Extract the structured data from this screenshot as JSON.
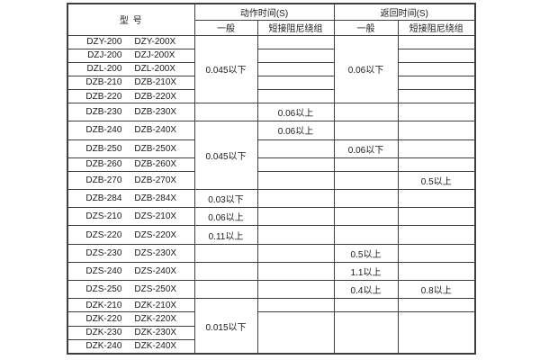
{
  "table": {
    "header": {
      "model_label": "型  号",
      "action_time_label": "动作时间(S)",
      "return_time_label": "返回时间(S)",
      "action_general_label": "一般",
      "action_damping_label": "短接阻尼绕组",
      "return_general_label": "一般",
      "return_damping_label": "短接阻尼绕组"
    },
    "rows": [
      {
        "model": "DZY-200",
        "model_x": "DZY-200X",
        "cells": [
          {
            "v": "0.045以下",
            "rs": 5
          },
          {
            "v": ""
          },
          {
            "v": "0.06以下",
            "rs": 5
          },
          {
            "v": ""
          }
        ]
      },
      {
        "model": "DZJ-200",
        "model_x": "DZJ-200X",
        "cells": [
          null,
          {
            "v": ""
          },
          null,
          {
            "v": ""
          }
        ]
      },
      {
        "model": "DZL-200",
        "model_x": "DZL-200X",
        "cells": [
          null,
          {
            "v": ""
          },
          null,
          {
            "v": ""
          }
        ]
      },
      {
        "model": "DZB-210",
        "model_x": "DZB-210X",
        "cells": [
          null,
          {
            "v": ""
          },
          null,
          {
            "v": ""
          }
        ]
      },
      {
        "model": "DZB-220",
        "model_x": "DZB-220X",
        "cells": [
          null,
          {
            "v": ""
          },
          null,
          {
            "v": ""
          }
        ]
      },
      {
        "model": "DZB-230",
        "model_x": "DZB-230X",
        "cells": [
          {
            "v": ""
          },
          {
            "v": "0.06以上"
          },
          {
            "v": ""
          },
          {
            "v": ""
          }
        ]
      },
      {
        "model": "DZB-240",
        "model_x": "DZB-240X",
        "cells": [
          {
            "v": "0.045以下",
            "rs": 4
          },
          {
            "v": "0.06以上"
          },
          {
            "v": ""
          },
          {
            "v": ""
          }
        ]
      },
      {
        "model": "DZB-250",
        "model_x": "DZB-250X",
        "cells": [
          null,
          {
            "v": ""
          },
          {
            "v": "0.06以下"
          },
          {
            "v": ""
          }
        ]
      },
      {
        "model": "DZB-260",
        "model_x": "DZB-260X",
        "cells": [
          null,
          {
            "v": ""
          },
          {
            "v": ""
          },
          {
            "v": ""
          }
        ]
      },
      {
        "model": "DZB-270",
        "model_x": "DZB-270X",
        "cells": [
          null,
          {
            "v": ""
          },
          {
            "v": ""
          },
          {
            "v": "0.5以上"
          }
        ]
      },
      {
        "model": "DZB-284",
        "model_x": "DZB-284X",
        "cells": [
          {
            "v": "0.03以下"
          },
          {
            "v": ""
          },
          {
            "v": ""
          },
          {
            "v": ""
          }
        ]
      },
      {
        "model": "DZS-210",
        "model_x": "DZS-210X",
        "cells": [
          {
            "v": "0.06以上"
          },
          {
            "v": ""
          },
          {
            "v": ""
          },
          {
            "v": ""
          }
        ]
      },
      {
        "model": "DZS-220",
        "model_x": "DZS-220X",
        "cells": [
          {
            "v": "0.11以上"
          },
          {
            "v": ""
          },
          {
            "v": ""
          },
          {
            "v": ""
          }
        ]
      },
      {
        "model": "DZS-230",
        "model_x": "DZS-230X",
        "cells": [
          {
            "v": ""
          },
          {
            "v": ""
          },
          {
            "v": "0.5以上"
          },
          {
            "v": ""
          }
        ]
      },
      {
        "model": "DZS-240",
        "model_x": "DZS-240X",
        "cells": [
          {
            "v": ""
          },
          {
            "v": ""
          },
          {
            "v": "1.1以上"
          },
          {
            "v": ""
          }
        ]
      },
      {
        "model": "DZS-250",
        "model_x": "DZS-250X",
        "cells": [
          {
            "v": ""
          },
          {
            "v": ""
          },
          {
            "v": "0.4以上"
          },
          {
            "v": "0.8以上"
          }
        ]
      },
      {
        "model": "DZK-210",
        "model_x": "DZK-210X",
        "cells": [
          {
            "v": "0.015以下",
            "rs": 4
          },
          {
            "v": ""
          },
          {
            "v": ""
          },
          {
            "v": ""
          }
        ]
      },
      {
        "model": "DZK-220",
        "model_x": "DZK-220X",
        "cells": [
          null,
          {
            "v": "",
            "rs": 3
          },
          {
            "v": "",
            "rs": 3
          },
          {
            "v": "",
            "rs": 3
          }
        ]
      },
      {
        "model": "DZK-230",
        "model_x": "DZK-230X",
        "cells": [
          null,
          null,
          null,
          null
        ]
      },
      {
        "model": "DZK-240",
        "model_x": "DZK-240X",
        "cells": [
          null,
          null,
          null,
          null
        ]
      }
    ]
  },
  "colors": {
    "border": "#3f3f3f",
    "text": "#1a1a1a",
    "background": "#ffffff"
  }
}
